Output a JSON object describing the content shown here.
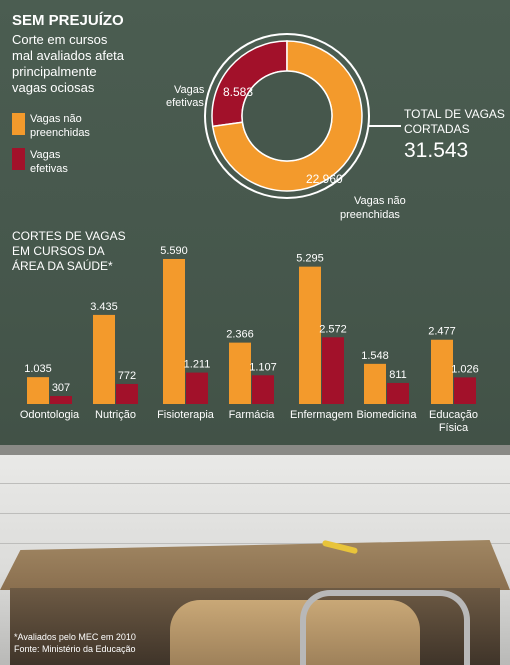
{
  "header": {
    "title": "SEM PREJUÍZO",
    "subtitle": [
      "Corte em cursos",
      "mal avaliados afeta",
      "principalmente",
      "vagas ociosas"
    ]
  },
  "legend": {
    "items": [
      {
        "label": [
          "Vagas não",
          "preenchidas"
        ],
        "color": "#f39a2c"
      },
      {
        "label": [
          "Vagas",
          "efetivas"
        ],
        "color": "#a2112a"
      }
    ]
  },
  "colors": {
    "vagas_nao_preenchidas": "#f39a2c",
    "vagas_efetivas": "#a2112a"
  },
  "total": {
    "label": [
      "TOTAL DE VAGAS",
      "CORTADAS"
    ],
    "value": "31.543"
  },
  "bar_title": [
    "CORTES DE VAGAS",
    "EM CURSOS DA",
    "ÁREA DA SAÚDE*"
  ],
  "footnote": [
    "*Avaliados pelo MEC em 2010",
    "Fonte: Ministério da Educação"
  ],
  "chart_data": [
    {
      "type": "pie",
      "donut": true,
      "slices": [
        {
          "name_lines": [
            "Vagas não",
            "preenchidas"
          ],
          "value": 22960,
          "label": "22.960",
          "color": "#f39a2c"
        },
        {
          "name_lines": [
            "Vagas",
            "efetivas"
          ],
          "value": 8583,
          "label": "8.583",
          "color": "#a2112a"
        }
      ]
    },
    {
      "type": "bar",
      "categories": [
        [
          "Odontologia"
        ],
        [
          "Nutrição"
        ],
        [
          "Fisioterapia"
        ],
        [
          "Farmácia"
        ],
        [
          "Enfermagem"
        ],
        [
          "Biomedicina"
        ],
        [
          "Educação",
          "Física"
        ]
      ],
      "series": [
        {
          "values": [
            1035,
            3435,
            5590,
            2366,
            5295,
            1548,
            2477
          ],
          "labels": [
            "1.035",
            "3.435",
            "5.590",
            "2.366",
            "5.295",
            "1.548",
            "2.477"
          ],
          "color": "#f39a2c"
        },
        {
          "values": [
            307,
            772,
            1211,
            1107,
            2572,
            811,
            1026
          ],
          "labels": [
            "307",
            "772",
            "1.211",
            "1.107",
            "2.572",
            "811",
            "1.026"
          ],
          "color": "#a2112a"
        }
      ]
    }
  ]
}
